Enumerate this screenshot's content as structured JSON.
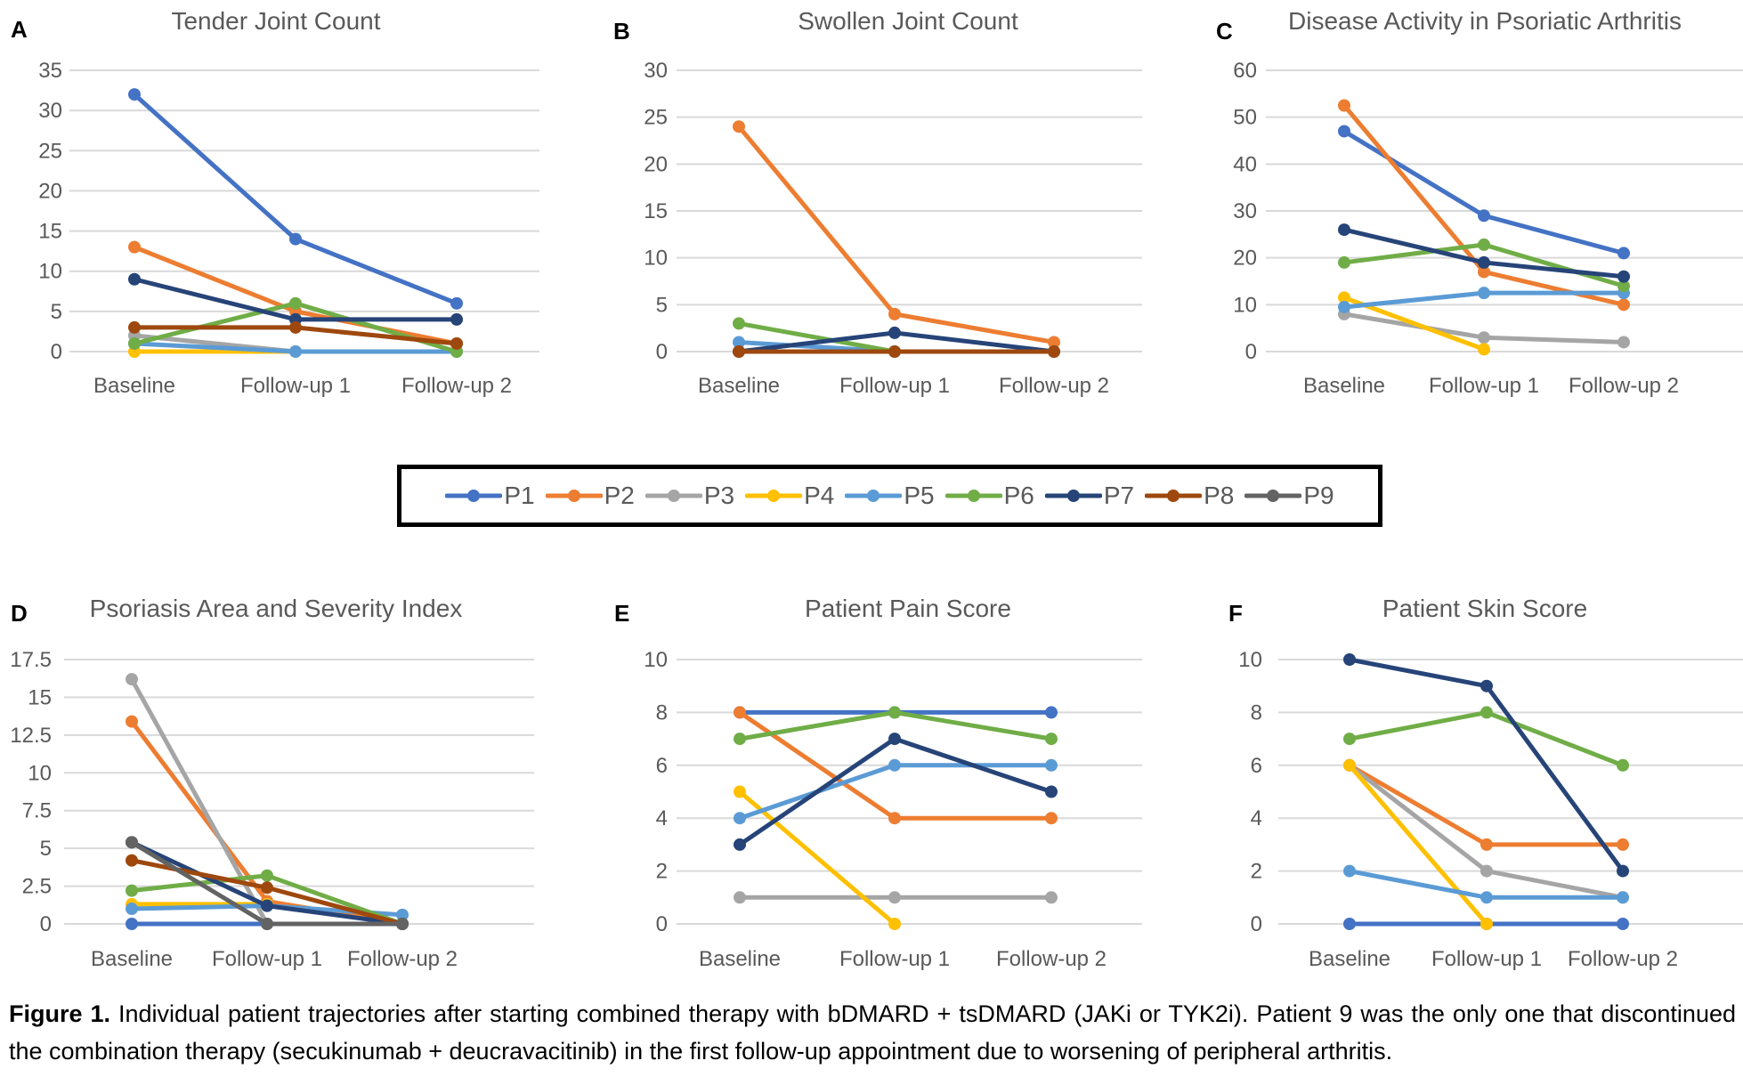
{
  "legend": {
    "items": [
      {
        "name": "P1",
        "color": "#4472C4"
      },
      {
        "name": "P2",
        "color": "#ED7D31"
      },
      {
        "name": "P3",
        "color": "#A5A5A5"
      },
      {
        "name": "P4",
        "color": "#FFC000"
      },
      {
        "name": "P5",
        "color": "#5B9BD5"
      },
      {
        "name": "P6",
        "color": "#70AD47"
      },
      {
        "name": "P7",
        "color": "#264478"
      },
      {
        "name": "P8",
        "color": "#9E480E"
      },
      {
        "name": "P9",
        "color": "#636363"
      }
    ]
  },
  "caption": {
    "label": "Figure 1.",
    "text": " Individual patient trajectories after starting combined therapy with bDMARD + tsDMARD (JAKi or TYK2i). Patient 9 was the only one that discontinued the combination therapy (secukinumab + deucravacitinib) in the first follow-up appointment due to worsening of peripheral arthritis."
  },
  "chart_data": [
    {
      "panel": "A",
      "type": "line",
      "title": "Tender Joint Count",
      "categories": [
        "Baseline",
        "Follow-up 1",
        "Follow-up 2"
      ],
      "yticks": [
        "0",
        "5",
        "10",
        "15",
        "20",
        "25",
        "30",
        "35"
      ],
      "ylim": [
        0,
        35
      ],
      "grid": true,
      "series": [
        {
          "name": "P1",
          "values": [
            32,
            14,
            6
          ]
        },
        {
          "name": "P2",
          "values": [
            13,
            5,
            1
          ]
        },
        {
          "name": "P3",
          "values": [
            2,
            0,
            null
          ]
        },
        {
          "name": "P4",
          "values": [
            0,
            0,
            null
          ]
        },
        {
          "name": "P5",
          "values": [
            1,
            0,
            0
          ]
        },
        {
          "name": "P6",
          "values": [
            1,
            6,
            0
          ]
        },
        {
          "name": "P7",
          "values": [
            9,
            4,
            4
          ]
        },
        {
          "name": "P8",
          "values": [
            3,
            3,
            1
          ]
        }
      ]
    },
    {
      "panel": "B",
      "type": "line",
      "title": "Swollen Joint Count",
      "categories": [
        "Baseline",
        "Follow-up 1",
        "Follow-up 2"
      ],
      "yticks": [
        "0",
        "5",
        "10",
        "15",
        "20",
        "25",
        "30"
      ],
      "ylim": [
        0,
        30
      ],
      "grid": true,
      "series": [
        {
          "name": "P2",
          "values": [
            24,
            4,
            1
          ]
        },
        {
          "name": "P5",
          "values": [
            1,
            0,
            null
          ]
        },
        {
          "name": "P6",
          "values": [
            3,
            0,
            null
          ]
        },
        {
          "name": "P7",
          "values": [
            0,
            2,
            0
          ]
        },
        {
          "name": "P8",
          "values": [
            0,
            0,
            0
          ]
        }
      ]
    },
    {
      "panel": "C",
      "type": "line",
      "title": "Disease Activity in Psoriatic Arthritis",
      "categories": [
        "Baseline",
        "Follow-up 1",
        "Follow-up 2"
      ],
      "yticks": [
        "0",
        "10",
        "20",
        "30",
        "40",
        "50",
        "60"
      ],
      "ylim": [
        0,
        60
      ],
      "grid": true,
      "series": [
        {
          "name": "P1",
          "values": [
            47,
            29,
            21
          ]
        },
        {
          "name": "P2",
          "values": [
            52.5,
            17,
            10
          ]
        },
        {
          "name": "P3",
          "values": [
            8,
            3,
            2
          ]
        },
        {
          "name": "P4",
          "values": [
            11.5,
            0.5,
            null
          ]
        },
        {
          "name": "P5",
          "values": [
            9.5,
            12.5,
            12.5
          ]
        },
        {
          "name": "P6",
          "values": [
            19,
            22.8,
            14
          ]
        },
        {
          "name": "P7",
          "values": [
            26,
            19,
            16
          ]
        }
      ]
    },
    {
      "panel": "D",
      "type": "line",
      "title": "Psoriasis Area and Severity Index",
      "categories": [
        "Baseline",
        "Follow-up 1",
        "Follow-up 2"
      ],
      "yticks": [
        "0",
        "2.5",
        "5",
        "7.5",
        "10",
        "12.5",
        "15",
        "17.5"
      ],
      "ylim": [
        0,
        17.5
      ],
      "grid": true,
      "series": [
        {
          "name": "P1",
          "values": [
            0,
            0,
            null
          ]
        },
        {
          "name": "P2",
          "values": [
            13.4,
            1.5,
            0
          ]
        },
        {
          "name": "P3",
          "values": [
            16.2,
            0,
            0
          ]
        },
        {
          "name": "P4",
          "values": [
            1.3,
            1.3,
            null
          ]
        },
        {
          "name": "P5",
          "values": [
            1.0,
            1.2,
            0.6
          ]
        },
        {
          "name": "P6",
          "values": [
            2.2,
            3.2,
            0
          ]
        },
        {
          "name": "P7",
          "values": [
            5.4,
            1.2,
            0
          ]
        },
        {
          "name": "P8",
          "values": [
            4.2,
            2.4,
            0
          ]
        },
        {
          "name": "P9",
          "values": [
            5.4,
            0,
            0
          ]
        }
      ]
    },
    {
      "panel": "E",
      "type": "line",
      "title": "Patient Pain Score",
      "categories": [
        "Baseline",
        "Follow-up 1",
        "Follow-up 2"
      ],
      "yticks": [
        "0",
        "2",
        "4",
        "6",
        "8",
        "10"
      ],
      "ylim": [
        0,
        10
      ],
      "grid": true,
      "series": [
        {
          "name": "P1",
          "values": [
            8,
            8,
            8
          ]
        },
        {
          "name": "P2",
          "values": [
            8,
            4,
            4
          ]
        },
        {
          "name": "P3",
          "values": [
            1,
            1,
            1
          ]
        },
        {
          "name": "P4",
          "values": [
            5,
            0,
            null
          ]
        },
        {
          "name": "P5",
          "values": [
            4,
            6,
            6
          ]
        },
        {
          "name": "P6",
          "values": [
            7,
            8,
            7
          ]
        },
        {
          "name": "P7",
          "values": [
            3,
            7,
            5
          ]
        }
      ]
    },
    {
      "panel": "F",
      "type": "line",
      "title": "Patient Skin Score",
      "categories": [
        "Baseline",
        "Follow-up 1",
        "Follow-up 2"
      ],
      "yticks": [
        "0",
        "2",
        "4",
        "6",
        "8",
        "10"
      ],
      "ylim": [
        0,
        10
      ],
      "grid": true,
      "series": [
        {
          "name": "P1",
          "values": [
            0,
            0,
            0
          ]
        },
        {
          "name": "P2",
          "values": [
            6,
            3,
            3
          ]
        },
        {
          "name": "P3",
          "values": [
            6,
            2,
            1
          ]
        },
        {
          "name": "P4",
          "values": [
            6,
            0,
            null
          ]
        },
        {
          "name": "P5",
          "values": [
            2,
            1,
            1
          ]
        },
        {
          "name": "P6",
          "values": [
            7,
            8,
            6
          ]
        },
        {
          "name": "P7",
          "values": [
            10,
            9,
            2
          ]
        }
      ]
    }
  ]
}
